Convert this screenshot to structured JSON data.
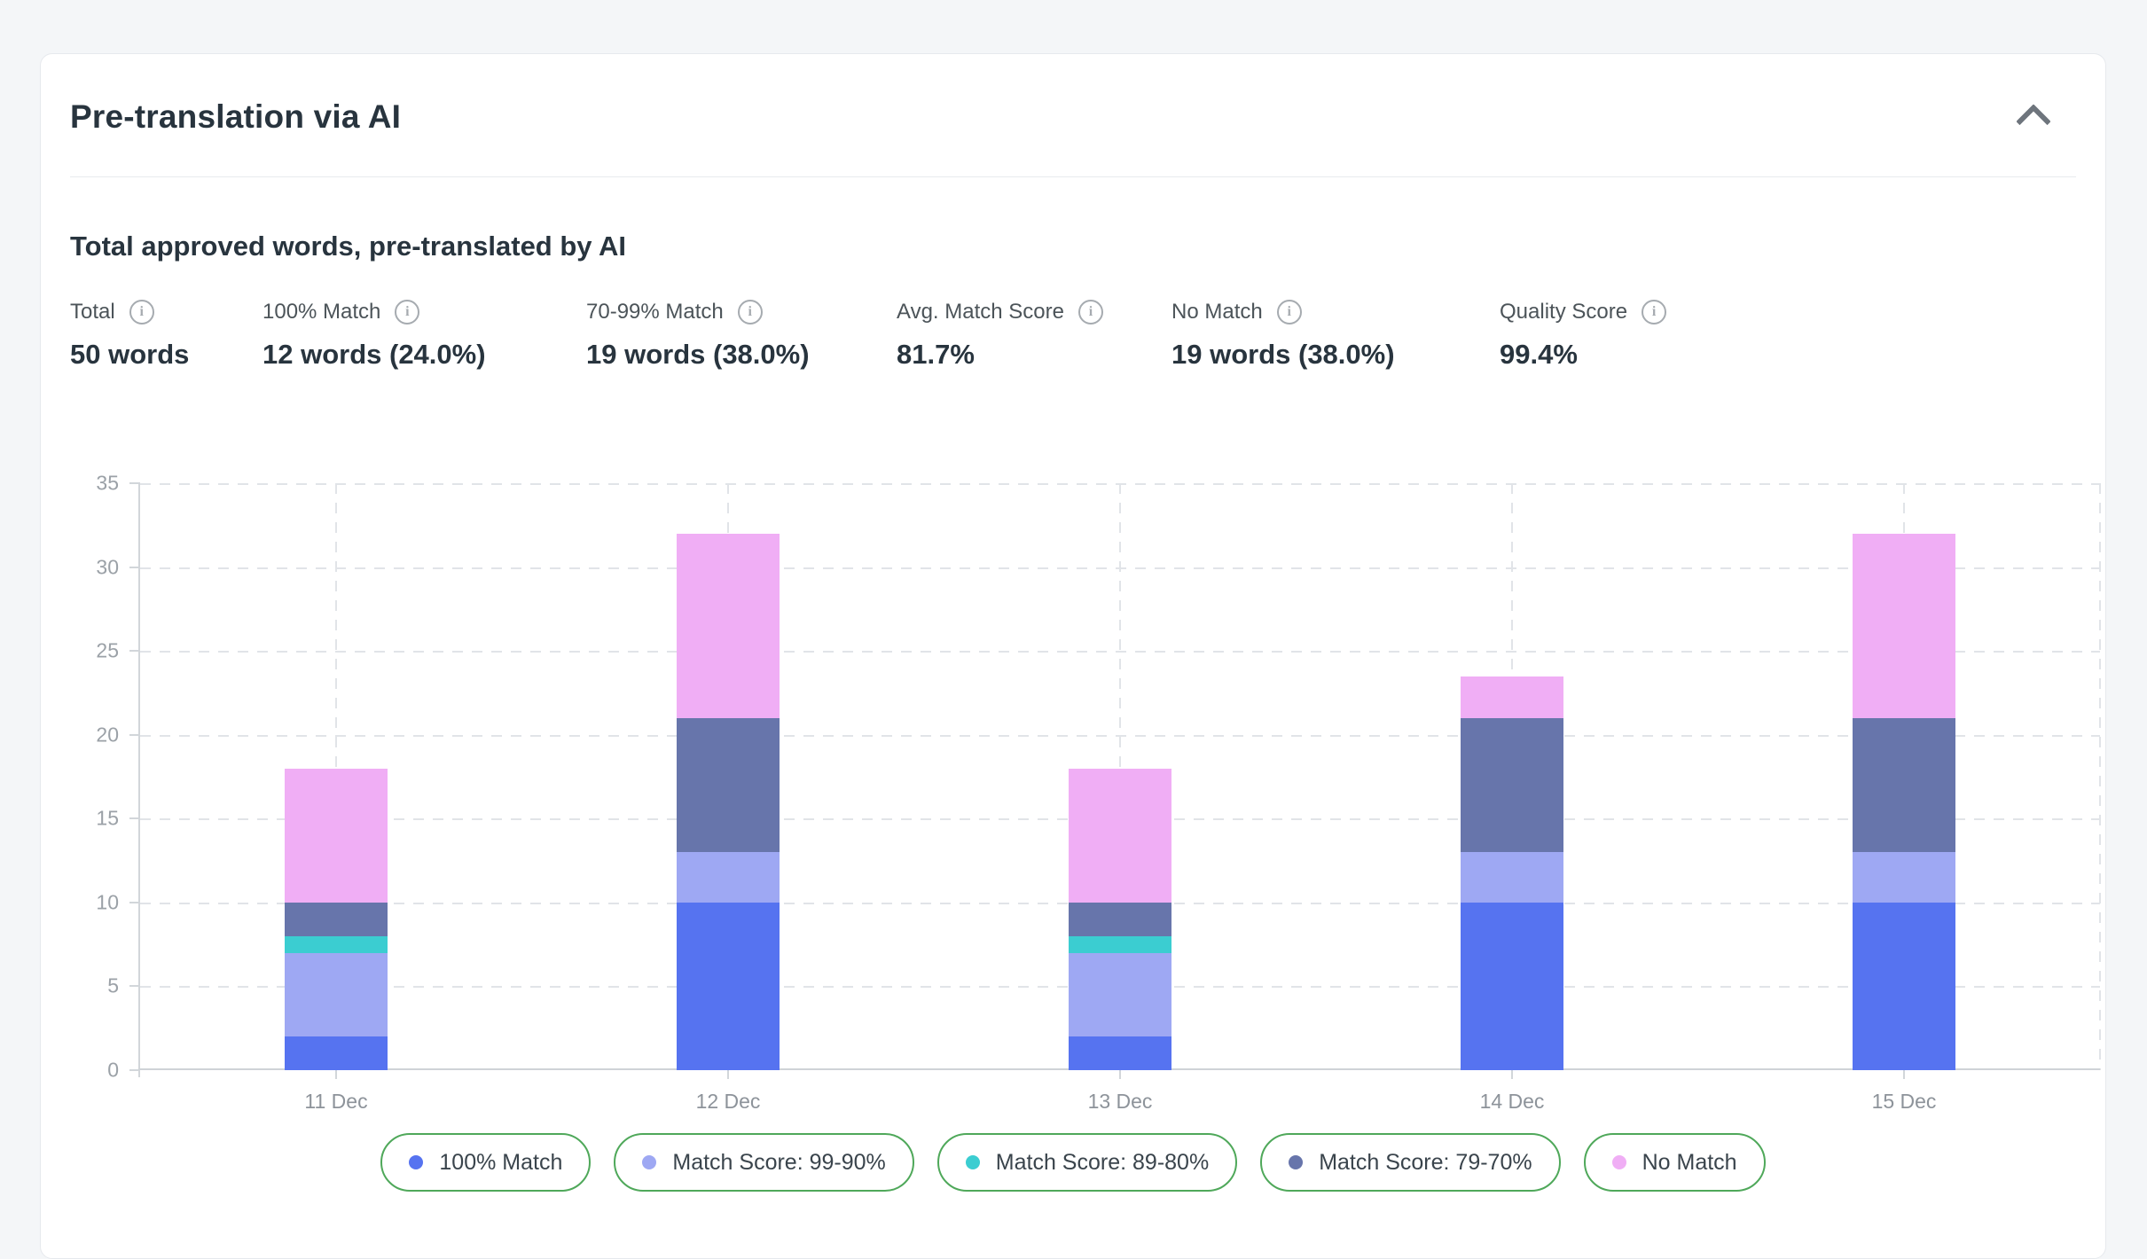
{
  "card": {
    "title": "Pre-translation via AI",
    "section_title": "Total approved words, pre-translated by AI",
    "stats": [
      {
        "label": "Total",
        "value": "50 words"
      },
      {
        "label": "100% Match",
        "value": "12 words (24.0%)"
      },
      {
        "label": "70-99% Match",
        "value": "19 words (38.0%)"
      },
      {
        "label": "Avg. Match Score",
        "value": "81.7%"
      },
      {
        "label": "No Match",
        "value": "19 words (38.0%)"
      },
      {
        "label": "Quality Score",
        "value": "99.4%"
      }
    ],
    "info_icon_glyph": "i"
  },
  "chart_data": {
    "type": "bar",
    "stacked": true,
    "title": "",
    "xlabel": "",
    "ylabel": "",
    "categories": [
      "11 Dec",
      "12 Dec",
      "13 Dec",
      "14 Dec",
      "15 Dec"
    ],
    "series": [
      {
        "name": "100% Match",
        "color": "#5673f0",
        "values": [
          2,
          10,
          2,
          10,
          10
        ]
      },
      {
        "name": "Match Score: 99-90%",
        "color": "#9ea8f3",
        "values": [
          5,
          3,
          5,
          3,
          3
        ]
      },
      {
        "name": "Match Score: 89-80%",
        "color": "#3bcdd1",
        "values": [
          1,
          0,
          1,
          0,
          0
        ]
      },
      {
        "name": "Match Score: 79-70%",
        "color": "#6775ab",
        "values": [
          2,
          8,
          2,
          8,
          8
        ]
      },
      {
        "name": "No Match",
        "color": "#f0aef5",
        "values": [
          8,
          11,
          8,
          2.5,
          11
        ]
      }
    ],
    "totals": [
      18,
      32,
      18,
      23.5,
      32
    ],
    "ylim": [
      0,
      35
    ],
    "ytick_step": 5,
    "grid": "dashed",
    "legend_position": "bottom",
    "legend_border_color": "#4fa85a"
  }
}
